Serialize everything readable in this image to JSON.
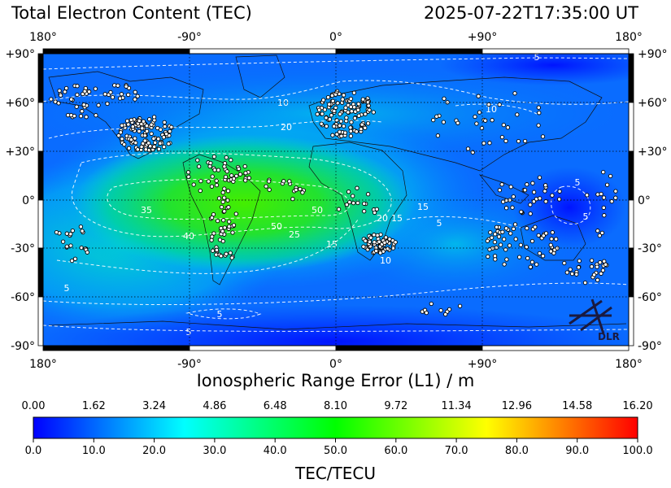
{
  "header": {
    "title": "Total Electron Content (TEC)",
    "timestamp": "2025-07-22T17:35:00 UT"
  },
  "map": {
    "lon_ticks": [
      "180°",
      "-90°",
      "0°",
      "+90°",
      "180°"
    ],
    "lat_ticks": [
      "+90°",
      "+60°",
      "+30°",
      "0°",
      "-30°",
      "-60°",
      "-90°"
    ],
    "contour_labels": [
      "5",
      "10",
      "10",
      "20",
      "35",
      "40",
      "50",
      "50",
      "25",
      "20",
      "15",
      "15",
      "15",
      "5",
      "5",
      "5",
      "5",
      "5",
      "10",
      "5"
    ],
    "logo_text": "DLR"
  },
  "range_axis": {
    "label": "Ionospheric Range Error (L1) / m",
    "ticks": [
      "0.00",
      "1.62",
      "3.24",
      "4.86",
      "6.48",
      "8.10",
      "9.72",
      "11.34",
      "12.96",
      "14.58",
      "16.20"
    ]
  },
  "colorbar": {
    "label": "TEC/TECU",
    "ticks": [
      "0.0",
      "10.0",
      "20.0",
      "30.0",
      "40.0",
      "50.0",
      "60.0",
      "70.0",
      "80.0",
      "90.0",
      "100.0"
    ],
    "colors": [
      "#0000ff",
      "#00ffff",
      "#00ff00",
      "#ffff00",
      "#ff0000"
    ]
  }
}
